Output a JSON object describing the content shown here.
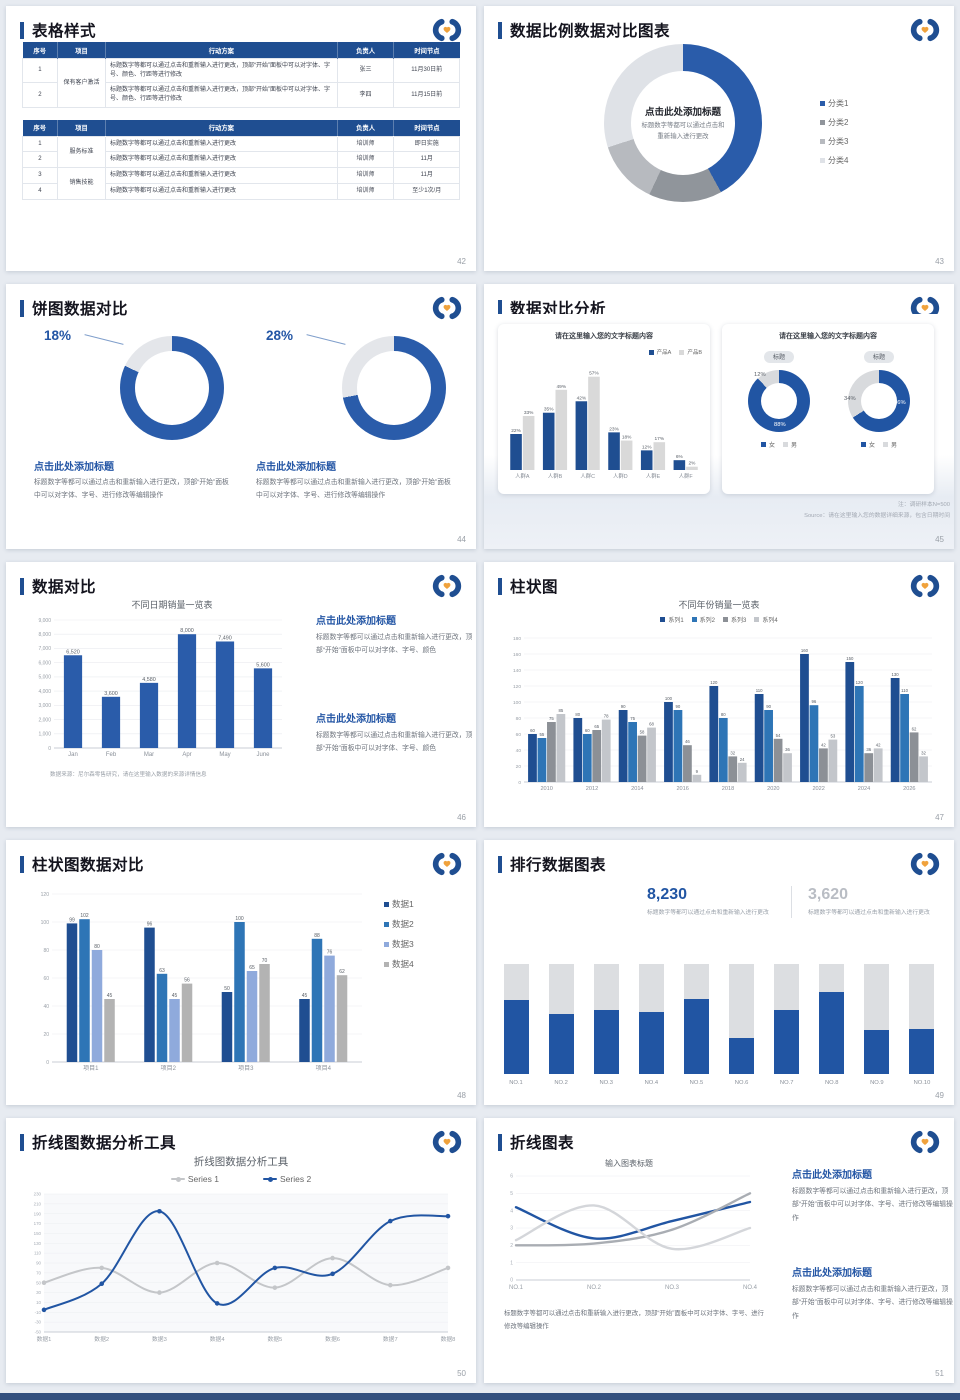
{
  "colors": {
    "accent": "#1f4e91",
    "blue": "#2a5caa",
    "blue2": "#2155a3",
    "heading_blue": "#2456a5",
    "gray_light": "#d9d9d9",
    "orange": "#f0a23c"
  },
  "slides": [
    {
      "page": "42",
      "title": "表格样式",
      "tables": [
        {
          "headers": [
            "序号",
            "项目",
            "行动方案",
            "负责人",
            "时间节点"
          ],
          "widths": [
            8,
            11,
            53,
            13,
            15
          ],
          "rows": [
            [
              {
                "t": "1"
              },
              {
                "t": "保有客户激活",
                "rs": 2
              },
              {
                "t": "标题数字等都可以通过点击和重新输入进行更改，顶部“开始”面板中可以对字体、字号、颜色、行距等进行修改",
                "align": "left"
              },
              {
                "t": "张三"
              },
              {
                "t": "11月30日前"
              }
            ],
            [
              {
                "t": "2"
              },
              null,
              {
                "t": "标题数字等都可以通过点击和重新输入进行更改，顶部“开始”面板中可以对字体、字号、颜色、行距等进行修改",
                "align": "left"
              },
              {
                "t": "李四"
              },
              {
                "t": "11月15日前"
              }
            ]
          ]
        },
        {
          "headers": [
            "序号",
            "项目",
            "行动方案",
            "负责人",
            "时间节点"
          ],
          "widths": [
            8,
            11,
            53,
            13,
            15
          ],
          "rows": [
            [
              {
                "t": "1"
              },
              {
                "t": "服务标准",
                "rs": 2
              },
              {
                "t": "标题数字等都可以通过点击和重新输入进行更改",
                "align": "left"
              },
              {
                "t": "培训师"
              },
              {
                "t": "即日实施"
              }
            ],
            [
              {
                "t": "2"
              },
              null,
              {
                "t": "标题数字等都可以通过点击和重新输入进行更改",
                "align": "left"
              },
              {
                "t": "培训师"
              },
              {
                "t": "11月"
              }
            ],
            [
              {
                "t": "3"
              },
              {
                "t": "销售技能",
                "rs": 2
              },
              {
                "t": "标题数字等都可以通过点击和重新输入进行更改",
                "align": "left"
              },
              {
                "t": "培训师"
              },
              {
                "t": "11月"
              }
            ],
            [
              {
                "t": "4"
              },
              null,
              {
                "t": "标题数字等都可以通过点击和重新输入进行更改",
                "align": "left"
              },
              {
                "t": "培训师"
              },
              {
                "t": "至少1次/月"
              }
            ]
          ]
        }
      ]
    },
    {
      "page": "43",
      "title": "数据比例数据对比图表",
      "center_title": "点击此处添加标题",
      "center_line1": "标题数字等都可以通过点击和",
      "center_line2": "重新输入进行更改",
      "chart_data": {
        "type": "pie",
        "labels": [
          "分类1",
          "分类2",
          "分类3",
          "分类4"
        ],
        "values": [
          42,
          15,
          13,
          30
        ],
        "colors": [
          "#2a5caa",
          "#90959b",
          "#b7babf",
          "#dfe2e7"
        ]
      }
    },
    {
      "page": "44",
      "title": "饼图数据对比",
      "items": [
        {
          "pct": "18%",
          "value": 18,
          "heading": "点击此处添加标题",
          "body": "标题数字等都可以通过点击和重新输入进行更改，顶部“开始”面板中可以对字体、字号、进行修改等编辑操作"
        },
        {
          "pct": "28%",
          "value": 28,
          "heading": "点击此处添加标题",
          "body": "标题数字等都可以通过点击和重新输入进行更改，顶部“开始”面板中可以对字体、字号、进行修改等编辑操作"
        }
      ]
    },
    {
      "page": "45",
      "title": "数据对比分析",
      "left": {
        "title": "请在这里输入您的文字标题内容",
        "chart_data": {
          "type": "bar",
          "categories": [
            "人群A",
            "人群B",
            "人群C",
            "人群D",
            "人群E",
            "人群F"
          ],
          "series": [
            {
              "name": "产品A",
              "color": "#1f4e91",
              "values": [
                22,
                35,
                42,
                23,
                12,
                6
              ],
              "labels": [
                "22%",
                "35%",
                "42%",
                "23%",
                "12%",
                "6%"
              ]
            },
            {
              "name": "产品B",
              "color": "#d9d9d9",
              "values": [
                33,
                49,
                57,
                18,
                17,
                2
              ],
              "labels": [
                "33%",
                "49%",
                "57%",
                "18%",
                "17%",
                "2%"
              ]
            }
          ],
          "ymax": 66
        }
      },
      "right": {
        "title": "请在这里输入您的文字标题内容",
        "badge": "标题",
        "donuts": [
          {
            "blue": 88,
            "gray": 12,
            "glabel": "12%",
            "blabel": "88%",
            "legend": [
              "女",
              "男"
            ]
          },
          {
            "blue": 66,
            "gray": 34,
            "glabel": "34%",
            "blabel": "66%",
            "legend": [
              "女",
              "男"
            ]
          }
        ]
      },
      "note": "注：调研样本N=500",
      "source": "Source：请在这里输入您的数据详细来源，包含日期时间"
    },
    {
      "page": "46",
      "title": "数据对比",
      "chart_data": {
        "type": "bar",
        "title": "不同日期销量一览表",
        "categories": [
          "Jan",
          "Feb",
          "Mar",
          "Apr",
          "May",
          "June"
        ],
        "values": [
          6520,
          3600,
          4580,
          8000,
          7490,
          5600
        ],
        "labels": [
          "6,520",
          "3,600",
          "4,580",
          "8,000",
          "7,490",
          "5,600"
        ],
        "ylim": [
          0,
          9000
        ],
        "step": 1000,
        "color": "#2a5caa"
      },
      "source": "数据来源：尼尔森零售研究，请在这里输入数据的来源详情信息",
      "blocks": [
        {
          "heading": "点击此处添加标题",
          "body": "标题数字等都可以通过点击和重新输入进行更改，顶部“开始”面板中可以对字体、字号、颜色"
        },
        {
          "heading": "点击此处添加标题",
          "body": "标题数字等都可以通过点击和重新输入进行更改，顶部“开始”面板中可以对字体、字号、颜色"
        }
      ]
    },
    {
      "page": "47",
      "title": "柱状图",
      "chart_data": {
        "type": "bar",
        "title": "不同年份销量一览表",
        "legend": [
          "系列1",
          "系列2",
          "系列3",
          "系列4"
        ],
        "colors": [
          "#1f4e91",
          "#2e75b6",
          "#8c9096",
          "#c3c6cb"
        ],
        "categories": [
          "2010",
          "2012",
          "2014",
          "2016",
          "2018",
          "2020",
          "2022",
          "2024",
          "2026"
        ],
        "series": [
          {
            "name": "系列1",
            "values": [
              60,
              80,
              90,
              100,
              120,
              110,
              160,
              150,
              130
            ]
          },
          {
            "name": "系列2",
            "values": [
              55,
              60,
              75,
              90,
              80,
              90,
              96,
              120,
              110
            ]
          },
          {
            "name": "系列3",
            "values": [
              75,
              65,
              58,
              46,
              32,
              54,
              42,
              36,
              62
            ]
          },
          {
            "name": "系列4",
            "values": [
              85,
              78,
              68,
              9,
              24,
              36,
              53,
              42,
              32
            ]
          }
        ],
        "ylim": [
          0,
          180
        ],
        "step": 20
      }
    },
    {
      "page": "48",
      "title": "柱状图数据对比",
      "chart_data": {
        "type": "bar",
        "legend": [
          "数据1",
          "数据2",
          "数据3",
          "数据4"
        ],
        "colors": [
          "#1f4e91",
          "#2e75b6",
          "#8faadc",
          "#b3b3b3"
        ],
        "categories": [
          "项目1",
          "项目2",
          "项目3",
          "项目4"
        ],
        "series": [
          {
            "name": "数据1",
            "values": [
              99,
              96,
              50,
              45
            ]
          },
          {
            "name": "数据2",
            "values": [
              102,
              63,
              100,
              88
            ]
          },
          {
            "name": "数据3",
            "values": [
              80,
              45,
              65,
              76
            ]
          },
          {
            "name": "数据4",
            "values": [
              45,
              56,
              70,
              62
            ]
          }
        ],
        "ylim": [
          0,
          120
        ],
        "step": 20
      }
    },
    {
      "page": "49",
      "title": "排行数据图表",
      "stats": [
        {
          "value": "8,230",
          "caption": "标题数字等都可以通过点击和重新输入进行更改",
          "color": "#2155a3"
        },
        {
          "value": "3,620",
          "caption": "标题数字等都可以通过点击和重新输入进行更改",
          "color": "#b9bdc4"
        }
      ],
      "chart_data": {
        "type": "bar",
        "subtype": "stacked-rank",
        "categories": [
          "NO.1",
          "NO.2",
          "NO.3",
          "NO.4",
          "NO.5",
          "NO.6",
          "NO.7",
          "NO.8",
          "NO.9",
          "NO.10"
        ],
        "percents": [
          67,
          55,
          58,
          56,
          68,
          33,
          58,
          75,
          40,
          41
        ]
      }
    },
    {
      "page": "50",
      "title": "折线图数据分析工具",
      "chart_data": {
        "type": "line",
        "title": "折线图数据分析工具",
        "legend": [
          "Series 1",
          "Series 2"
        ],
        "colors": [
          "#c4c6c9",
          "#2155a3"
        ],
        "categories": [
          "数据1",
          "数据2",
          "数据3",
          "数据4",
          "数据5",
          "数据6",
          "数据7",
          "数据8"
        ],
        "series": [
          {
            "name": "Series 1",
            "values": [
              50,
              80,
              30,
              90,
              40,
              100,
              45,
              80
            ]
          },
          {
            "name": "Series 2",
            "values": [
              -5,
              48,
              195,
              8,
              80,
              68,
              175,
              185
            ]
          }
        ],
        "ylim": [
          -50,
          230
        ],
        "step": 20
      }
    },
    {
      "page": "51",
      "title": "折线图表",
      "chart_data": {
        "type": "line",
        "title": "输入图表标题",
        "categories": [
          "NO.1",
          "NO.2",
          "NO.3",
          "NO.4"
        ],
        "colors": [
          "#2155a3",
          "#a9adb3",
          "#d4d6da"
        ],
        "series": [
          {
            "name": "line1",
            "values": [
              4.2,
              2.4,
              3.4,
              4.5
            ]
          },
          {
            "name": "line2",
            "values": [
              2,
              2.1,
              2.9,
              5
            ]
          },
          {
            "name": "line3",
            "values": [
              2.3,
              4.3,
              1.8,
              3
            ]
          }
        ],
        "ylim": [
          0,
          6
        ],
        "step": 1
      },
      "caption": "标题数字等都可以通过点击和重新输入进行更改，顶部“开始”面板中可以对字体、字号、进行修改等编辑操作",
      "blocks": [
        {
          "heading": "点击此处添加标题",
          "body": "标题数字等都可以通过点击和重新输入进行更改，顶部“开始”面板中可以对字体、字号、进行修改等编辑操作"
        },
        {
          "heading": "点击此处添加标题",
          "body": "标题数字等都可以通过点击和重新输入进行更改，顶部“开始”面板中可以对字体、字号、进行修改等编辑操作"
        }
      ]
    }
  ]
}
